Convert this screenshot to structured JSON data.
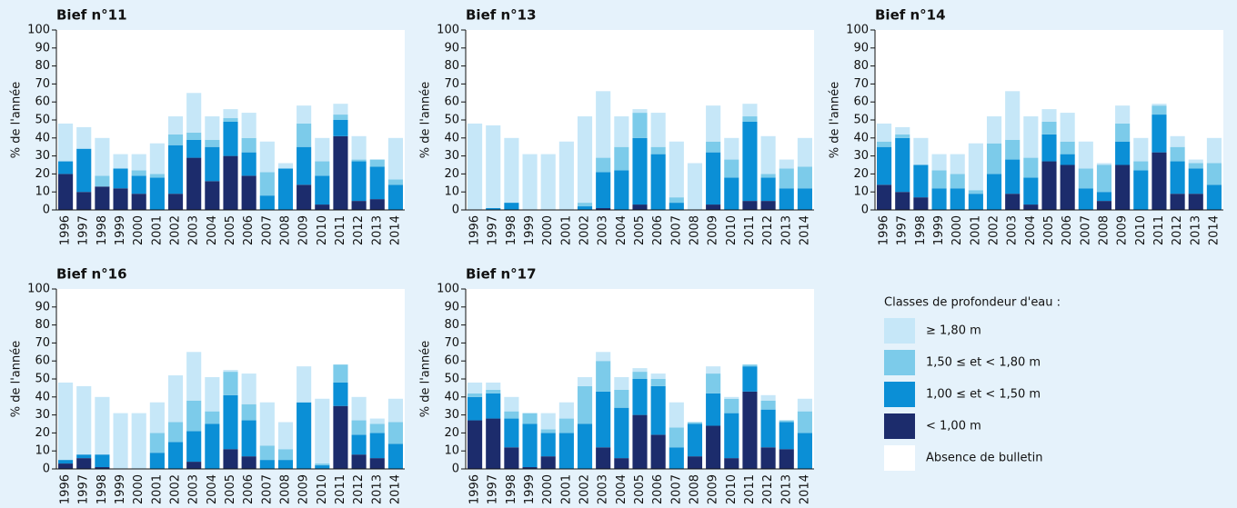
{
  "chart_data": [
    {
      "type": "bar",
      "stacked": true,
      "title": "Bief n°11",
      "ylabel": "% de l'année",
      "categories": [
        "1996",
        "1997",
        "1998",
        "1999",
        "2000",
        "2001",
        "2002",
        "2003",
        "2004",
        "2005",
        "2006",
        "2007",
        "2008",
        "2009",
        "2010",
        "2011",
        "2012",
        "2013",
        "2014"
      ],
      "ylim": [
        0,
        100
      ],
      "yticks": [
        0,
        10,
        20,
        30,
        40,
        50,
        60,
        70,
        80,
        90,
        100
      ],
      "series": [
        {
          "name": "< 1,00 m",
          "color": "#1c2c6c",
          "values": [
            20,
            10,
            13,
            12,
            9,
            0,
            9,
            29,
            16,
            30,
            19,
            0,
            0,
            14,
            3,
            41,
            5,
            6,
            0
          ]
        },
        {
          "name": "1,00 ≤ et < 1,50 m",
          "color": "#0b8fd6",
          "values": [
            7,
            24,
            0,
            11,
            10,
            18,
            27,
            10,
            19,
            19,
            13,
            8,
            23,
            21,
            16,
            9,
            22,
            18,
            14
          ]
        },
        {
          "name": "1,50 ≤ et < 1,80 m",
          "color": "#7ccbea",
          "values": [
            0,
            0,
            6,
            0,
            3,
            2,
            6,
            4,
            4,
            2,
            8,
            13,
            0,
            13,
            8,
            3,
            1,
            4,
            3
          ]
        },
        {
          "name": "≥ 1,80 m",
          "color": "#c6e7f8",
          "values": [
            21,
            12,
            21,
            8,
            9,
            17,
            10,
            22,
            13,
            5,
            14,
            17,
            3,
            10,
            13,
            6,
            13,
            0,
            23
          ]
        }
      ]
    },
    {
      "type": "bar",
      "stacked": true,
      "title": "Bief n°13",
      "ylabel": "% de l'année",
      "categories": [
        "1996",
        "1997",
        "1998",
        "1999",
        "2000",
        "2001",
        "2002",
        "2003",
        "2004",
        "2005",
        "2006",
        "2007",
        "2008",
        "2009",
        "2010",
        "2011",
        "2012",
        "2013",
        "2014"
      ],
      "ylim": [
        0,
        100
      ],
      "yticks": [
        0,
        10,
        20,
        30,
        40,
        50,
        60,
        70,
        80,
        90,
        100
      ],
      "series": [
        {
          "name": "< 1,00 m",
          "color": "#1c2c6c",
          "values": [
            0,
            0,
            0,
            0,
            0,
            0,
            0,
            1,
            0,
            3,
            0,
            0,
            0,
            3,
            0,
            5,
            5,
            0,
            0
          ]
        },
        {
          "name": "1,00 ≤ et < 1,50 m",
          "color": "#0b8fd6",
          "values": [
            0,
            1,
            4,
            0,
            0,
            0,
            2,
            20,
            22,
            37,
            31,
            4,
            0,
            29,
            18,
            44,
            13,
            12,
            12
          ]
        },
        {
          "name": "1,50 ≤ et < 1,80 m",
          "color": "#7ccbea",
          "values": [
            0,
            0,
            0,
            0,
            0,
            0,
            2,
            8,
            13,
            14,
            4,
            3,
            0,
            6,
            10,
            3,
            2,
            11,
            12
          ]
        },
        {
          "name": "≥ 1,80 m",
          "color": "#c6e7f8",
          "values": [
            48,
            46,
            36,
            31,
            31,
            38,
            48,
            37,
            17,
            2,
            19,
            31,
            26,
            20,
            12,
            7,
            21,
            5,
            16
          ]
        }
      ]
    },
    {
      "type": "bar",
      "stacked": true,
      "title": "Bief n°14",
      "ylabel": "% de l'année",
      "categories": [
        "1996",
        "1997",
        "1998",
        "1999",
        "2000",
        "2001",
        "2002",
        "2003",
        "2004",
        "2005",
        "2006",
        "2007",
        "2008",
        "2009",
        "2010",
        "2011",
        "2012",
        "2013",
        "2014"
      ],
      "ylim": [
        0,
        100
      ],
      "yticks": [
        0,
        10,
        20,
        30,
        40,
        50,
        60,
        70,
        80,
        90,
        100
      ],
      "series": [
        {
          "name": "< 1,00 m",
          "color": "#1c2c6c",
          "values": [
            14,
            10,
            7,
            0,
            0,
            0,
            0,
            9,
            3,
            27,
            25,
            0,
            5,
            25,
            0,
            32,
            9,
            9,
            0
          ]
        },
        {
          "name": "1,00 ≤ et < 1,50 m",
          "color": "#0b8fd6",
          "values": [
            21,
            30,
            18,
            12,
            12,
            9,
            20,
            19,
            15,
            15,
            6,
            12,
            5,
            13,
            22,
            21,
            18,
            14,
            14
          ]
        },
        {
          "name": "1,50 ≤ et < 1,80 m",
          "color": "#7ccbea",
          "values": [
            3,
            2,
            0,
            10,
            8,
            2,
            17,
            11,
            11,
            7,
            7,
            11,
            15,
            10,
            5,
            5,
            8,
            3,
            12
          ]
        },
        {
          "name": "≥ 1,80 m",
          "color": "#c6e7f8",
          "values": [
            10,
            4,
            15,
            9,
            11,
            26,
            15,
            27,
            23,
            7,
            16,
            15,
            1,
            10,
            13,
            1,
            6,
            2,
            14
          ]
        }
      ]
    },
    {
      "type": "bar",
      "stacked": true,
      "title": "Bief n°16",
      "ylabel": "% de l'année",
      "categories": [
        "1996",
        "1997",
        "1998",
        "1999",
        "2000",
        "2001",
        "2002",
        "2003",
        "2004",
        "2005",
        "2006",
        "2007",
        "2008",
        "2009",
        "2010",
        "2011",
        "2012",
        "2013",
        "2014"
      ],
      "ylim": [
        0,
        100
      ],
      "yticks": [
        0,
        10,
        20,
        30,
        40,
        50,
        60,
        70,
        80,
        90,
        100
      ],
      "series": [
        {
          "name": "< 1,00 m",
          "color": "#1c2c6c",
          "values": [
            3,
            6,
            1,
            0,
            0,
            0,
            0,
            4,
            0,
            11,
            7,
            0,
            0,
            0,
            0,
            35,
            8,
            6,
            0
          ]
        },
        {
          "name": "1,00 ≤ et < 1,50 m",
          "color": "#0b8fd6",
          "values": [
            2,
            2,
            7,
            0,
            0,
            9,
            15,
            17,
            25,
            30,
            20,
            5,
            5,
            37,
            2,
            13,
            11,
            14,
            14
          ]
        },
        {
          "name": "1,50 ≤ et < 1,80 m",
          "color": "#7ccbea",
          "values": [
            0,
            0,
            0,
            0,
            0,
            11,
            11,
            17,
            7,
            13,
            9,
            8,
            6,
            0,
            1,
            10,
            8,
            5,
            12
          ]
        },
        {
          "name": "≥ 1,80 m",
          "color": "#c6e7f8",
          "values": [
            43,
            38,
            32,
            31,
            31,
            17,
            26,
            27,
            19,
            1,
            17,
            24,
            15,
            20,
            36,
            0,
            13,
            3,
            13
          ]
        }
      ]
    },
    {
      "type": "bar",
      "stacked": true,
      "title": "Bief n°17",
      "ylabel": "% de l'année",
      "categories": [
        "1996",
        "1997",
        "1998",
        "1999",
        "2000",
        "2001",
        "2002",
        "2003",
        "2004",
        "2005",
        "2006",
        "2007",
        "2008",
        "2009",
        "2010",
        "2011",
        "2012",
        "2013",
        "2014"
      ],
      "ylim": [
        0,
        100
      ],
      "yticks": [
        0,
        10,
        20,
        30,
        40,
        50,
        60,
        70,
        80,
        90,
        100
      ],
      "series": [
        {
          "name": "< 1,00 m",
          "color": "#1c2c6c",
          "values": [
            27,
            28,
            12,
            1,
            7,
            0,
            0,
            12,
            6,
            30,
            19,
            0,
            7,
            24,
            6,
            43,
            12,
            11,
            0
          ]
        },
        {
          "name": "1,00 ≤ et < 1,50 m",
          "color": "#0b8fd6",
          "values": [
            13,
            14,
            16,
            24,
            13,
            20,
            25,
            31,
            28,
            20,
            27,
            12,
            18,
            18,
            25,
            14,
            21,
            15,
            20
          ]
        },
        {
          "name": "1,50 ≤ et < 1,80 m",
          "color": "#7ccbea",
          "values": [
            2,
            2,
            4,
            6,
            2,
            8,
            21,
            17,
            10,
            4,
            4,
            11,
            1,
            11,
            8,
            1,
            5,
            1,
            12
          ]
        },
        {
          "name": "≥ 1,80 m",
          "color": "#c6e7f8",
          "values": [
            6,
            4,
            8,
            0,
            9,
            9,
            5,
            5,
            7,
            2,
            3,
            14,
            0,
            4,
            1,
            0,
            3,
            0,
            7
          ]
        }
      ]
    }
  ],
  "legend": {
    "title": "Classes de profondeur d'eau :",
    "absence": {
      "name": "Absence de bulletin",
      "color": "#ffffff"
    }
  }
}
